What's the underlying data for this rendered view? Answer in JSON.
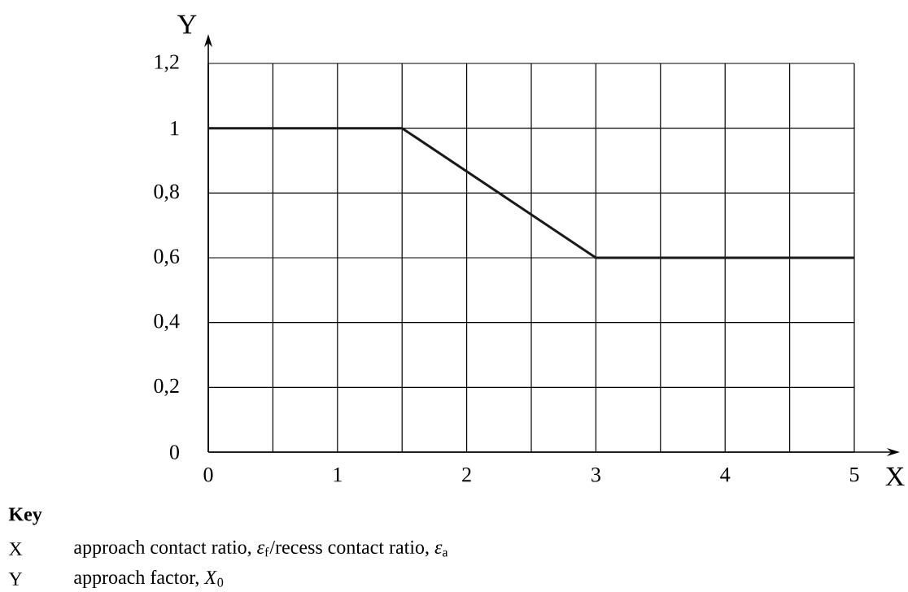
{
  "chart_data": {
    "type": "line",
    "xlabel": "X",
    "ylabel": "Y",
    "x": [
      0,
      1.5,
      3,
      5
    ],
    "values": [
      1,
      1,
      0.6,
      0.6
    ],
    "color": "#1a1a1a",
    "xlim": [
      0,
      5
    ],
    "xticks": [
      0,
      {
        "value": 0.5,
        "label": null
      },
      1,
      {
        "value": 1.5,
        "label": null
      },
      2,
      {
        "value": 2.5,
        "label": null
      },
      3,
      {
        "value": 3.5,
        "label": null
      },
      4,
      {
        "value": 4.5,
        "label": null
      },
      5
    ],
    "ylim": [
      0,
      1.2
    ],
    "yticks": [
      0,
      {
        "value": 0.2,
        "label": "0,2"
      },
      {
        "value": 0.4,
        "label": "0,4"
      },
      {
        "value": 0.6,
        "label": "0,6"
      },
      {
        "value": 0.8,
        "label": "0,8"
      },
      1,
      {
        "value": 1.2,
        "label": "1,2"
      }
    ],
    "grid": true,
    "marker": "none",
    "line_style": "solid",
    "annotations": [
      "**Key**",
      "X",
      "approach contact ratio, *ε*$_{f}$/recess contact ratio, *ε*$_{a}$",
      "Y",
      "approach factor, *X*$_{0}$"
    ]
  }
}
